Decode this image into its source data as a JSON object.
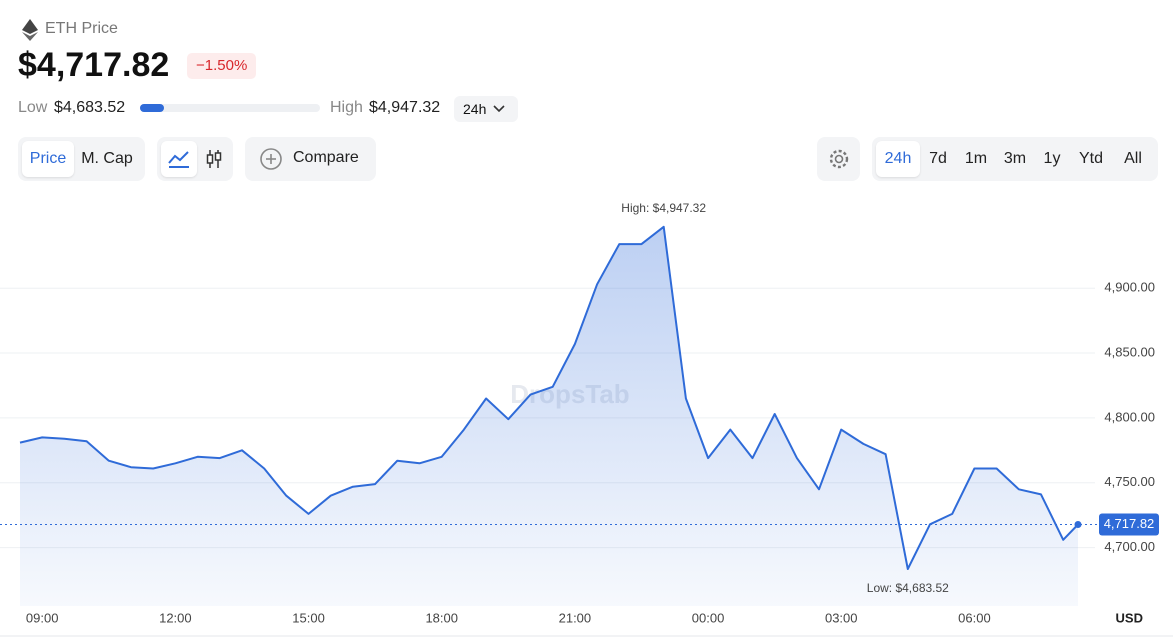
{
  "header": {
    "asset": "ETH Price",
    "price": "$4,717.82",
    "change": "−1.50%",
    "low_label": "Low",
    "low": "$4,683.52",
    "high_label": "High",
    "high": "$4,947.32",
    "range": "24h"
  },
  "controls": {
    "metric_tabs": [
      "Price",
      "M. Cap"
    ],
    "active_metric": 0,
    "compare": "Compare",
    "periods": [
      "24h",
      "7d",
      "1m",
      "3m",
      "1y",
      "Ytd",
      "All"
    ],
    "active_period": 0
  },
  "chart_data": {
    "type": "line",
    "color": "#2f6bd8",
    "grid": true,
    "watermark": "DropsTab",
    "currency": "USD",
    "x": [
      "08:30",
      "09:00",
      "09:30",
      "10:00",
      "10:30",
      "11:00",
      "11:30",
      "12:00",
      "12:30",
      "13:00",
      "13:30",
      "14:00",
      "14:30",
      "15:00",
      "15:30",
      "16:00",
      "16:30",
      "17:00",
      "17:30",
      "18:00",
      "18:30",
      "19:00",
      "19:30",
      "20:00",
      "20:30",
      "21:00",
      "21:30",
      "22:00",
      "22:30",
      "23:00",
      "23:30",
      "00:00",
      "00:30",
      "01:00",
      "01:30",
      "02:00",
      "02:30",
      "03:00",
      "03:30",
      "04:00",
      "04:30",
      "05:00",
      "05:30",
      "06:00",
      "06:30",
      "07:00",
      "07:30",
      "08:00",
      "08:20"
    ],
    "values": [
      4781,
      4785,
      4784,
      4782,
      4767,
      4762,
      4761,
      4765,
      4770,
      4769,
      4775,
      4761,
      4740,
      4726,
      4740,
      4747,
      4749,
      4767,
      4765,
      4770,
      4791,
      4815,
      4799,
      4818,
      4824,
      4857,
      4903,
      4934,
      4934,
      4947.32,
      4815,
      4769,
      4791,
      4769,
      4803,
      4769,
      4745,
      4791,
      4780,
      4772,
      4683.52,
      4718,
      4726,
      4761,
      4761,
      4745,
      4741,
      4706,
      4717.82
    ],
    "ylim": [
      4655,
      4968
    ],
    "yticks": [
      {
        "value": 4700,
        "label": "4,700.00"
      },
      {
        "value": 4750,
        "label": "4,750.00"
      },
      {
        "value": 4800,
        "label": "4,800.00"
      },
      {
        "value": 4850,
        "label": "4,850.00"
      },
      {
        "value": 4900,
        "label": "4,900.00"
      }
    ],
    "xticks": [
      "09:00",
      "12:00",
      "15:00",
      "18:00",
      "21:00",
      "00:00",
      "03:00",
      "06:00"
    ],
    "annotations": [
      {
        "label": "High: $4,947.32",
        "x": "23:00",
        "value": 4947.32,
        "side": "above"
      },
      {
        "label": "Low: $4,683.52",
        "x": "04:30",
        "value": 4683.52,
        "side": "below"
      }
    ],
    "last_label": {
      "value": 4717.82,
      "label": "4,717.82"
    }
  }
}
